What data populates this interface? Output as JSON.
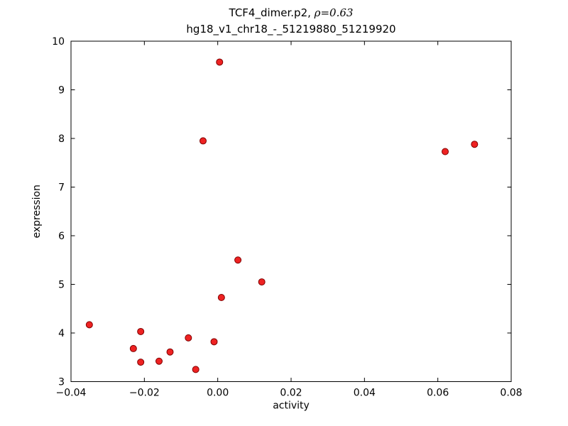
{
  "figure": {
    "background": "#ffffff",
    "axis_color": "#000000"
  },
  "chart_data": {
    "type": "scatter",
    "title": "TCF4_dimer.p2, ρ=0.63",
    "title_prefix": "TCF4_dimer.p2, ",
    "title_math": "ρ=0.63",
    "subtitle": "hg18_v1_chr18_-_51219880_51219920",
    "xlabel": "activity",
    "ylabel": "expression",
    "xlim": [
      -0.04,
      0.08
    ],
    "ylim": [
      3,
      10
    ],
    "x_ticks": [
      -0.04,
      -0.02,
      0.0,
      0.02,
      0.04,
      0.06,
      0.08
    ],
    "x_tick_labels": [
      "−0.04",
      "−0.02",
      "0.00",
      "0.02",
      "0.04",
      "0.06",
      "0.08"
    ],
    "y_ticks": [
      3,
      4,
      5,
      6,
      7,
      8,
      9,
      10
    ],
    "y_tick_labels": [
      "3",
      "4",
      "5",
      "6",
      "7",
      "8",
      "9",
      "10"
    ],
    "grid": false,
    "legend": null,
    "marker": {
      "shape": "circle",
      "fill": "#ee2222",
      "edge": "#7f0000",
      "radius": 4.5
    },
    "points": [
      [
        -0.035,
        4.17
      ],
      [
        -0.023,
        3.68
      ],
      [
        -0.021,
        3.4
      ],
      [
        -0.021,
        4.03
      ],
      [
        -0.016,
        3.42
      ],
      [
        -0.013,
        3.61
      ],
      [
        -0.008,
        3.9
      ],
      [
        -0.006,
        3.25
      ],
      [
        -0.004,
        7.95
      ],
      [
        -0.001,
        3.82
      ],
      [
        0.0005,
        9.57
      ],
      [
        0.001,
        4.73
      ],
      [
        0.0055,
        5.5
      ],
      [
        0.012,
        5.05
      ],
      [
        0.062,
        7.73
      ],
      [
        0.07,
        7.88
      ]
    ]
  }
}
